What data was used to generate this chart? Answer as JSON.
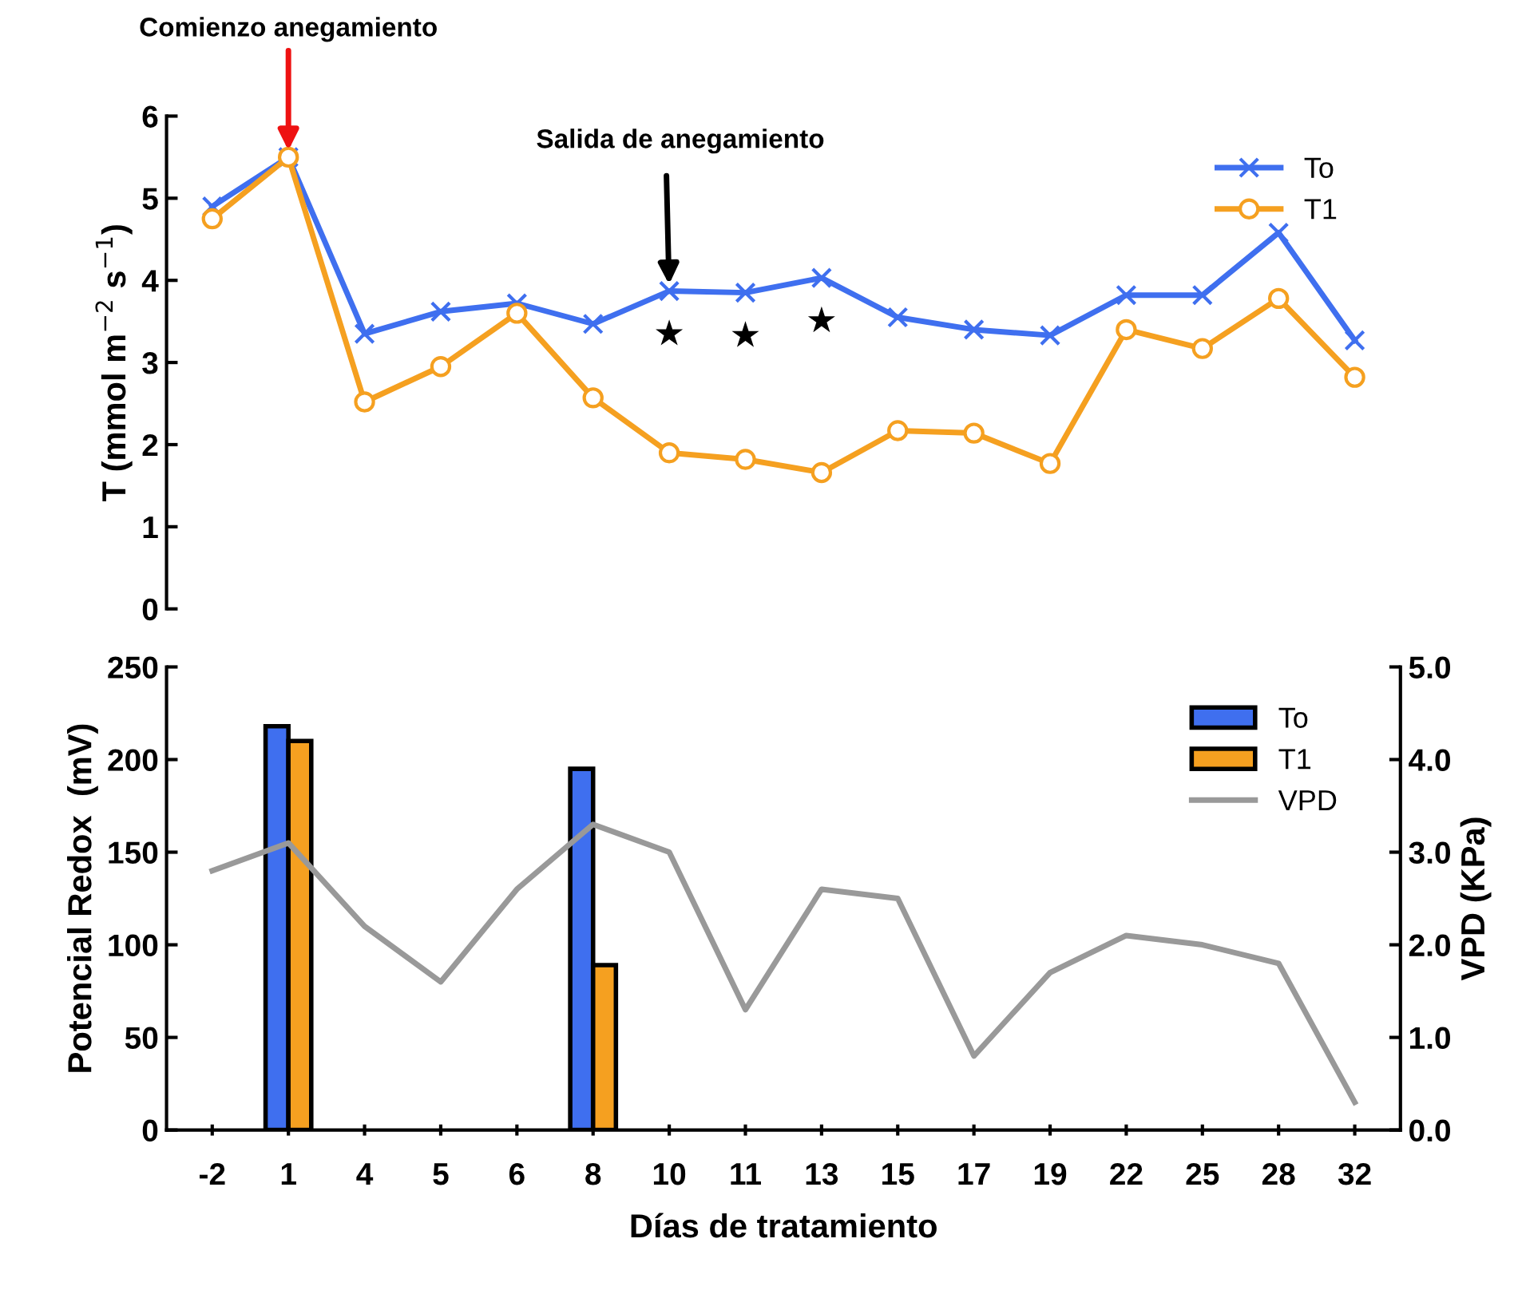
{
  "chart_data": [
    {
      "type": "line",
      "ylabel": "T (mmol m$^{−2}$ s$^{−1}$)",
      "categories": [
        "-2",
        "1",
        "4",
        "5",
        "6",
        "8",
        "10",
        "11",
        "13",
        "15",
        "17",
        "19",
        "22",
        "25",
        "28",
        "32"
      ],
      "tick_labels": "y",
      "ylim": [
        0,
        6
      ],
      "yticks": [
        0,
        1,
        2,
        3,
        4,
        5,
        6
      ],
      "grid": false,
      "legend": "top right",
      "series": [
        {
          "name": "To",
          "color": "#3f6fef",
          "marker": "cross",
          "values": [
            4.9,
            5.5,
            3.35,
            3.62,
            3.72,
            3.47,
            3.87,
            3.85,
            4.03,
            3.55,
            3.4,
            3.33,
            3.82,
            3.82,
            4.58,
            3.27
          ]
        },
        {
          "name": "T1",
          "color": "#f5a020",
          "marker": "circle",
          "values": [
            4.75,
            5.5,
            2.52,
            2.95,
            3.6,
            2.57,
            1.9,
            1.82,
            1.66,
            2.17,
            2.14,
            1.77,
            3.4,
            3.17,
            3.78,
            2.82
          ]
        }
      ],
      "annotations": [
        {
          "text": "Comienzo anegamiento",
          "x": "1",
          "y": 5.5
        },
        {
          "text": "Salida de anegamiento",
          "x": "10",
          "y": 3.87
        },
        {
          "text": "★",
          "x": "10",
          "y": 3.87
        },
        {
          "text": "★",
          "x": "11",
          "y": 3.85
        },
        {
          "text": "★",
          "x": "13",
          "y": 4.03
        }
      ]
    },
    {
      "type": "bar",
      "xlabel": "Días de tratamiento",
      "ylabel": "Potencial Redox  (mV)",
      "y2label": "VPD (KPa)",
      "categories": [
        "-2",
        "1",
        "4",
        "5",
        "6",
        "8",
        "10",
        "11",
        "13",
        "15",
        "17",
        "19",
        "22",
        "25",
        "28",
        "32"
      ],
      "ylim": [
        0,
        250
      ],
      "yticks": [
        0,
        50,
        100,
        150,
        200,
        250
      ],
      "y2lim": [
        0,
        5
      ],
      "y2ticks": [
        {
          "value": 0,
          "label": "0.0"
        },
        {
          "value": 1,
          "label": "1.0"
        },
        {
          "value": 2,
          "label": "2.0"
        },
        {
          "value": 3,
          "label": "3.0"
        },
        {
          "value": 4,
          "label": "4.0"
        },
        {
          "value": 5,
          "label": "5.0"
        }
      ],
      "grid": false,
      "legend": "top right",
      "series": [
        {
          "name": "To",
          "color": "#3f6fef",
          "values": [
            null,
            218,
            null,
            null,
            null,
            195,
            null,
            null,
            null,
            null,
            null,
            null,
            null,
            null,
            null,
            null
          ]
        },
        {
          "name": "T1",
          "color": "#f5a020",
          "values": [
            null,
            210,
            null,
            null,
            null,
            89,
            null,
            null,
            null,
            null,
            null,
            null,
            null,
            null,
            null,
            null
          ]
        },
        {
          "name": "VPD",
          "type": "line",
          "axis": "y2",
          "color": "#999999",
          "values": [
            2.8,
            3.1,
            2.2,
            1.6,
            2.6,
            3.3,
            3.0,
            1.3,
            2.6,
            2.5,
            0.8,
            1.7,
            2.1,
            2.0,
            1.8,
            0.3
          ]
        }
      ]
    }
  ]
}
